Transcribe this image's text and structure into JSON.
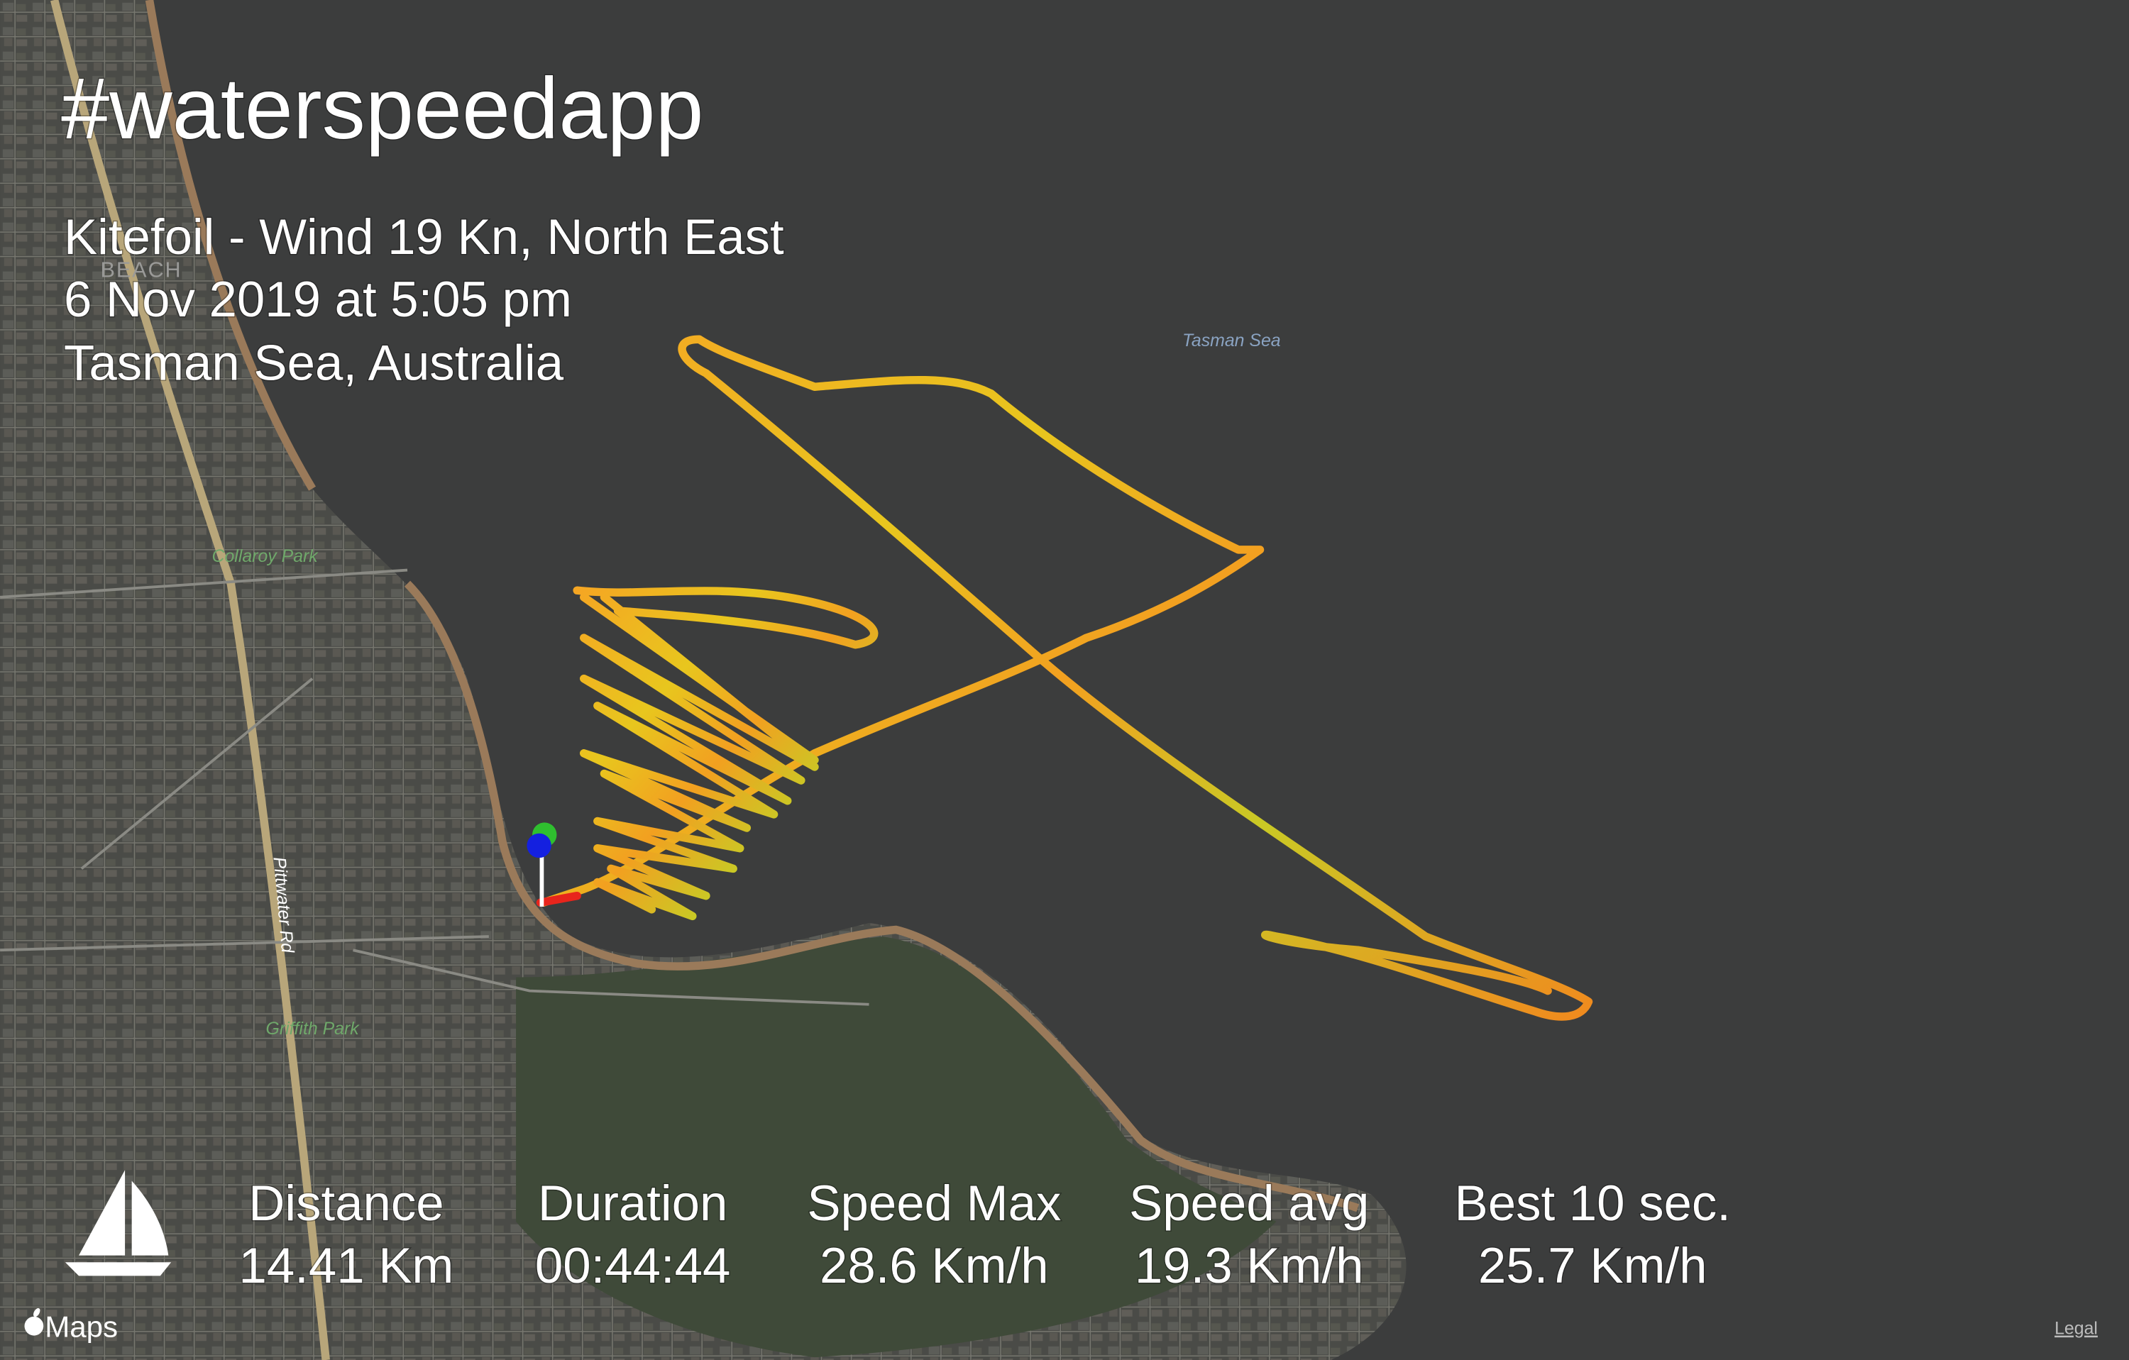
{
  "header": {
    "title": "#waterspeedapp",
    "lines": [
      "Kitefoil - Wind 19 Kn, North East",
      "6 Nov 2019 at 5:05 pm",
      "Tasman Sea, Australia"
    ]
  },
  "map_labels": [
    "Tasman Sea",
    "Collaroy Park",
    "Pittwater Rd",
    "Griffith Park",
    "BEACH"
  ],
  "stats": [
    {
      "label": "Distance",
      "value": "14.41 Km"
    },
    {
      "label": "Duration",
      "value": "00:44:44"
    },
    {
      "label": "Speed Max",
      "value": "28.6 Km/h"
    },
    {
      "label": "Speed avg",
      "value": "19.3 Km/h"
    },
    {
      "label": "Best 10 sec.",
      "value": "25.7 Km/h"
    }
  ],
  "footer": {
    "brand": "Maps",
    "legal": "Legal"
  }
}
